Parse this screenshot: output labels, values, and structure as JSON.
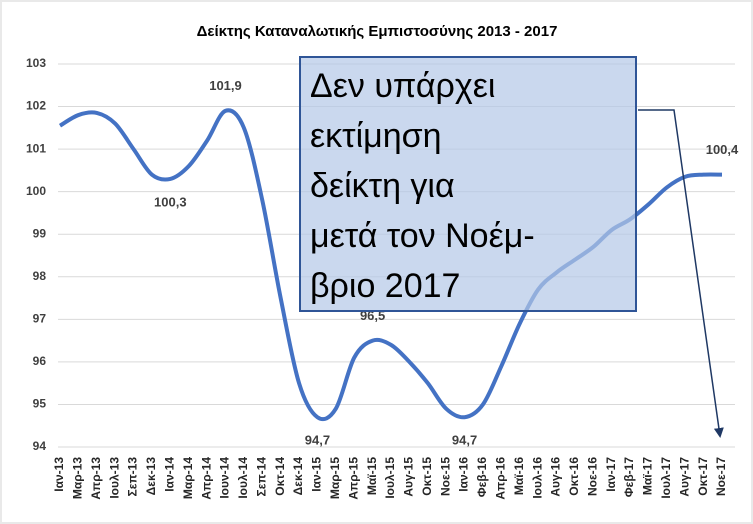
{
  "chart_data": {
    "type": "line",
    "title": "Δείκτης Καταναλωτικής Εμπιστοσύνης 2013 - 2017",
    "categories": [
      "Ιαν-13",
      "Μαρ-13",
      "Απρ-13",
      "Ιουλ-13",
      "Σεπ-13",
      "Δεκ-13",
      "Ιαν-14",
      "Μαρ-14",
      "Απρ-14",
      "Ιουν-14",
      "Ιουλ-14",
      "Σεπ-14",
      "Οκτ-14",
      "Δεκ-14",
      "Ιαν-15",
      "Μαρ-15",
      "Απρ-15",
      "Μαϊ-15",
      "Ιουλ-15",
      "Αυγ-15",
      "Οκτ-15",
      "Νοε-15",
      "Ιαν-16",
      "Φεβ-16",
      "Απρ-16",
      "Μαϊ-16",
      "Ιουλ-16",
      "Αυγ-16",
      "Οκτ-16",
      "Νοε-16",
      "Ιαν-17",
      "Φεβ-17",
      "Μαϊ-17",
      "Ιουλ-17",
      "Αυγ-17",
      "Οκτ-17",
      "Νοε-17"
    ],
    "series": [
      {
        "color": "#4472c4",
        "values": [
          101.55,
          101.8,
          101.85,
          101.6,
          101.0,
          100.4,
          100.3,
          100.6,
          101.2,
          101.9,
          101.5,
          99.8,
          97.5,
          95.5,
          94.7,
          94.9,
          96.1,
          96.5,
          96.4,
          96.0,
          95.5,
          94.9,
          94.7,
          95.0,
          95.9,
          96.9,
          97.7,
          98.1,
          98.4,
          98.7,
          99.1,
          99.35,
          99.7,
          100.1,
          100.35,
          100.4,
          100.4
        ],
        "value_labels": [
          null,
          null,
          null,
          null,
          null,
          null,
          "100,3",
          null,
          null,
          "101,9",
          null,
          null,
          null,
          null,
          "94,7",
          null,
          null,
          "96,5",
          null,
          null,
          null,
          null,
          "94,7",
          null,
          null,
          null,
          null,
          null,
          null,
          null,
          null,
          null,
          null,
          null,
          null,
          null,
          "100,4"
        ]
      }
    ],
    "ylim": [
      94,
      103
    ],
    "yticks": [
      94,
      95,
      96,
      97,
      98,
      99,
      100,
      101,
      102,
      103
    ],
    "grid": true,
    "annotation": [
      "Δεν υπάρχει",
      "εκτίμηση",
      "δείκτη για",
      "μετά τον Νοέμ-",
      "βριο 2017"
    ]
  }
}
